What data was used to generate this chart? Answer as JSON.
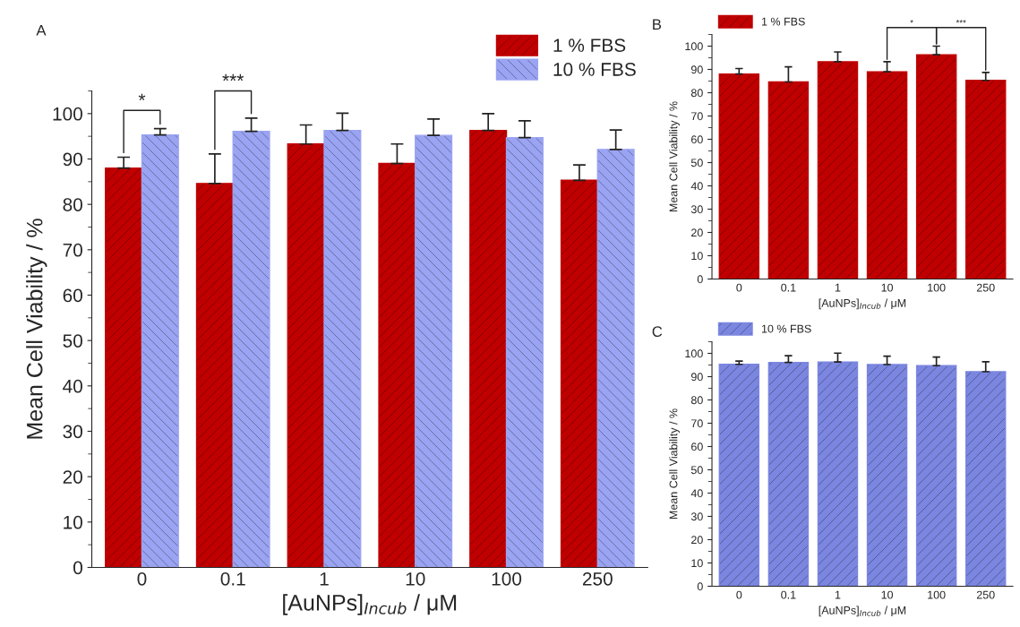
{
  "chart_data": [
    {
      "type": "bar",
      "title": "A",
      "xlabel": "[AuNPs]$_{Incub}$ / μM",
      "ylabel": "Mean Cell Viability / %",
      "categories": [
        "0",
        "0.1",
        "1",
        "10",
        "100",
        "250"
      ],
      "series": [
        {
          "name": "1 % FBS",
          "color": "#c00000",
          "values": [
            88,
            84.6,
            93.3,
            89,
            96.3,
            85.3
          ],
          "errors": [
            2.4,
            6.5,
            4.2,
            4.3,
            3.7,
            3.4
          ]
        },
        {
          "name": "10 % FBS",
          "color": "#9aa4f2",
          "values": [
            95.3,
            96.1,
            96.3,
            95.2,
            94.7,
            92.1
          ],
          "errors": [
            1.4,
            2.9,
            3.8,
            3.6,
            3.7,
            4.3
          ]
        }
      ],
      "ylim": [
        0,
        105
      ],
      "yticks": [
        0,
        10,
        20,
        30,
        40,
        50,
        60,
        70,
        80,
        90,
        100
      ],
      "legend": "top right",
      "annotations": [
        "*",
        "***"
      ]
    },
    {
      "type": "bar",
      "title": "B",
      "xlabel": "[AuNPs]$_{Incub}$ / μM",
      "ylabel": "Mean Cell Viability / %",
      "categories": [
        "0",
        "0.1",
        "1",
        "10",
        "100",
        "250"
      ],
      "series": [
        {
          "name": "1 % FBS",
          "color": "#c00000",
          "values": [
            88,
            84.6,
            93.3,
            89,
            96.3,
            85.3
          ],
          "errors": [
            2.4,
            6.5,
            4.2,
            4.3,
            3.7,
            3.4
          ]
        }
      ],
      "ylim": [
        0,
        105
      ],
      "yticks": [
        0,
        10,
        20,
        30,
        40,
        50,
        60,
        70,
        80,
        90,
        100
      ],
      "legend": "top left",
      "annotations": [
        "*",
        "***"
      ]
    },
    {
      "type": "bar",
      "title": "C",
      "xlabel": "[AuNPs]$_{Incub}$ / μM",
      "ylabel": "Mean Cell Viability / %",
      "categories": [
        "0",
        "0.1",
        "1",
        "10",
        "100",
        "250"
      ],
      "series": [
        {
          "name": "10 % FBS",
          "color": "#7b86e0",
          "values": [
            95.3,
            96.1,
            96.3,
            95.2,
            94.7,
            92.1
          ],
          "errors": [
            1.4,
            2.9,
            3.8,
            3.6,
            3.7,
            4.3
          ]
        }
      ],
      "ylim": [
        0,
        105
      ],
      "yticks": [
        0,
        10,
        20,
        30,
        40,
        50,
        60,
        70,
        80,
        90,
        100
      ],
      "legend": "top left"
    }
  ]
}
